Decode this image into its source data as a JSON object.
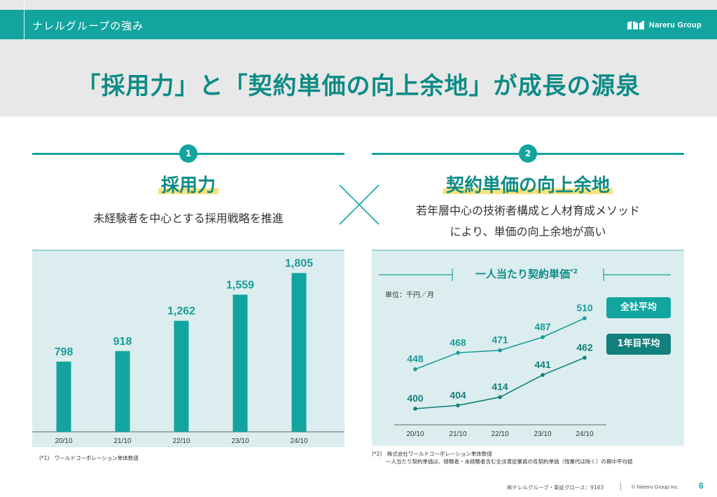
{
  "header": {
    "section": "ナレルグループの強み",
    "logo_text": "Nareru Group"
  },
  "title": "「採用力」と「契約単価の向上余地」が成長の源泉",
  "left": {
    "number": "1",
    "heading": "採用力",
    "subtitle": "未経験者を中心とする採用戦略を推進",
    "note": "(*1)　ワールドコーポレーション単体数値"
  },
  "right": {
    "number": "2",
    "heading": "契約単価の向上余地",
    "subtitle_line1": "若年層中心の技術者構成と人材育成メソッド",
    "subtitle_line2": "により、単価の向上余地が高い",
    "chart_title": "一人当たり契約単価",
    "chart_title_sup": "*2",
    "unit": "単位：千円／月",
    "tag_all": "全社平均",
    "tag_first": "1年目平均",
    "note_line1": "(*2)　株式会社ワールドコーポレーション単体数値",
    "note_line2": "一人当たり契約単価は、経験者・未経験者含む全派遣従業員の各契約単価（残業代は除く）の期中平均値"
  },
  "footer": {
    "company": "㈱ナレルグループ・東証グロース：9163",
    "copyright": "© Nareru Group Inc.",
    "page": "6"
  },
  "colors": {
    "teal": "#12a5a0",
    "teal_dark": "#12807c",
    "panel": "#dcedef",
    "highlight": "#f8e27a"
  },
  "chart_data": [
    {
      "type": "bar",
      "categories": [
        "20/10",
        "21/10",
        "22/10",
        "23/10",
        "24/10"
      ],
      "values": [
        798,
        918,
        1262,
        1559,
        1805
      ],
      "value_labels": [
        "798",
        "918",
        "1,262",
        "1,559",
        "1,805"
      ],
      "ylim": [
        0,
        2000
      ],
      "color": "#12a5a0",
      "grid": false
    },
    {
      "type": "line",
      "categories": [
        "20/10",
        "21/10",
        "22/10",
        "23/10",
        "24/10"
      ],
      "ylim": [
        380,
        520
      ],
      "grid": false,
      "series": [
        {
          "name": "全社平均",
          "values": [
            448,
            468,
            471,
            487,
            510
          ],
          "color": "#1a9c97"
        },
        {
          "name": "1年目平均",
          "values": [
            400,
            404,
            414,
            441,
            462
          ],
          "color": "#14807b"
        }
      ]
    }
  ]
}
